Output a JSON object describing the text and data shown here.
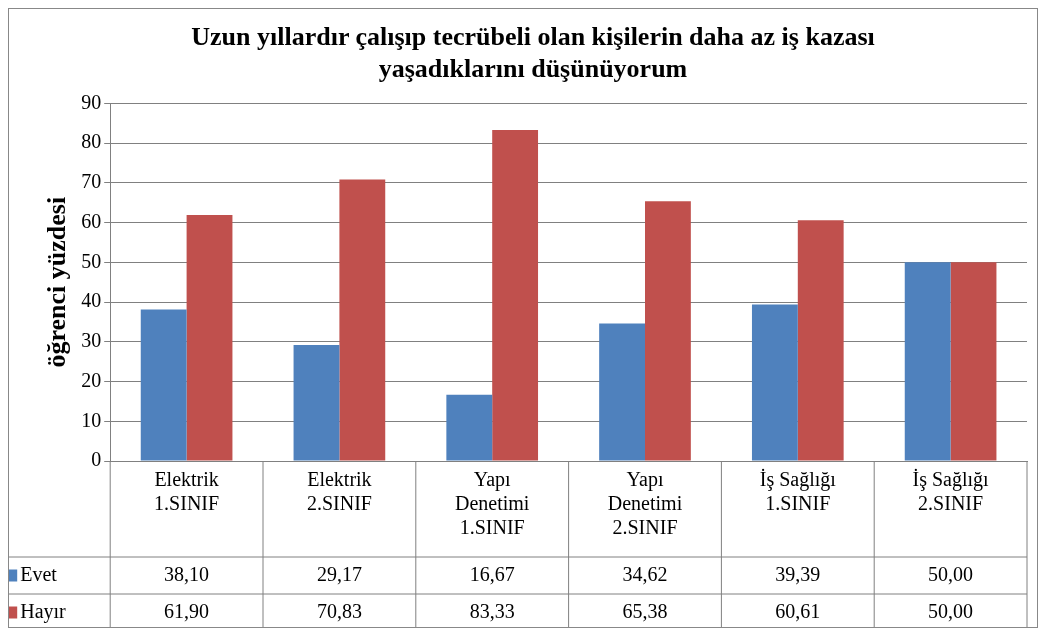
{
  "chart_data": {
    "type": "bar",
    "title": "Uzun yıllardır çalışıp tecrübeli olan kişilerin daha az iş kazası yaşadıklarını düşünüyorum",
    "ylabel": "öğrenci yüzdesi",
    "categories": [
      "Elektrik 1.SINIF",
      "Elektrik 2.SINIF",
      "Yapı Denetimi 1.SINIF",
      "Yapı Denetimi 2.SINIF",
      "İş Sağlığı 1.SINIF",
      "İş Sağlığı 2.SINIF"
    ],
    "series": [
      {
        "name": "Evet",
        "color": "#4f81bd",
        "values": [
          38.1,
          29.17,
          16.67,
          34.62,
          39.39,
          50.0
        ],
        "value_labels": [
          "38,10",
          "29,17",
          "16,67",
          "34,62",
          "39,39",
          "50,00"
        ]
      },
      {
        "name": "Hayır",
        "color": "#c0504d",
        "values": [
          61.9,
          70.83,
          83.33,
          65.38,
          60.61,
          50.0
        ],
        "value_labels": [
          "61,90",
          "70,83",
          "83,33",
          "65,38",
          "60,61",
          "50,00"
        ]
      }
    ],
    "ylim": [
      0,
      90
    ],
    "yticks": [
      0,
      10,
      20,
      30,
      40,
      50,
      60,
      70,
      80,
      90
    ],
    "grid": "y",
    "legend": "bottom"
  }
}
